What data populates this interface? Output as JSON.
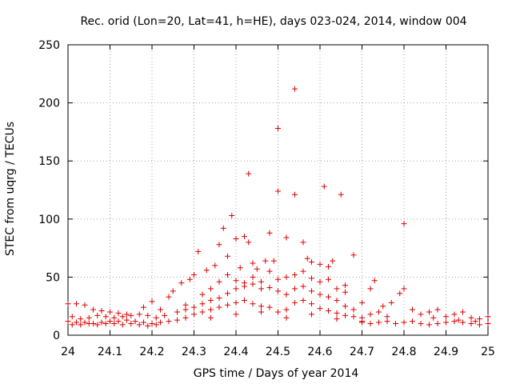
{
  "chart_data": {
    "type": "scatter",
    "title": "Rec. orid (Lon=20, Lat=41, h=HE), days 023-024, 2014, window 004",
    "xlabel": "GPS time / Days of year 2014",
    "ylabel": "STEC from uqrg / TECUs",
    "xlim": [
      24.0,
      25.0
    ],
    "ylim": [
      0,
      250
    ],
    "x_ticks": [
      "24",
      "24.1",
      "24.2",
      "24.3",
      "24.4",
      "24.5",
      "24.6",
      "24.7",
      "24.8",
      "24.9",
      "25"
    ],
    "y_ticks": [
      "0",
      "50",
      "100",
      "150",
      "200",
      "250"
    ],
    "grid": true,
    "marker": "+",
    "marker_color": "#dd0000",
    "points": [
      [
        24.0,
        27
      ],
      [
        24.02,
        27
      ],
      [
        24.04,
        26
      ],
      [
        24.06,
        22
      ],
      [
        24.08,
        21
      ],
      [
        24.1,
        20
      ],
      [
        24.12,
        19
      ],
      [
        24.14,
        18
      ],
      [
        24.01,
        16
      ],
      [
        24.03,
        14
      ],
      [
        24.05,
        15
      ],
      [
        24.07,
        17
      ],
      [
        24.09,
        16
      ],
      [
        24.11,
        15
      ],
      [
        24.13,
        16
      ],
      [
        24.15,
        17
      ],
      [
        24.17,
        18
      ],
      [
        24.19,
        17
      ],
      [
        24.21,
        15
      ],
      [
        24.23,
        17
      ],
      [
        24.0,
        12
      ],
      [
        24.02,
        11
      ],
      [
        24.04,
        11
      ],
      [
        24.06,
        10
      ],
      [
        24.08,
        11
      ],
      [
        24.1,
        12
      ],
      [
        24.12,
        12
      ],
      [
        24.14,
        13
      ],
      [
        24.16,
        12
      ],
      [
        24.18,
        11
      ],
      [
        24.2,
        10
      ],
      [
        24.22,
        11
      ],
      [
        24.24,
        12
      ],
      [
        24.26,
        13
      ],
      [
        24.28,
        15
      ],
      [
        24.01,
        9
      ],
      [
        24.03,
        9
      ],
      [
        24.05,
        10
      ],
      [
        24.07,
        9
      ],
      [
        24.09,
        10
      ],
      [
        24.11,
        10
      ],
      [
        24.13,
        9
      ],
      [
        24.15,
        10
      ],
      [
        24.17,
        9
      ],
      [
        24.19,
        8
      ],
      [
        24.21,
        9
      ],
      [
        24.18,
        24
      ],
      [
        24.2,
        29
      ],
      [
        24.22,
        22
      ],
      [
        24.24,
        33
      ],
      [
        24.25,
        38
      ],
      [
        24.27,
        45
      ],
      [
        24.29,
        48
      ],
      [
        24.3,
        52
      ],
      [
        24.31,
        72
      ],
      [
        24.33,
        56
      ],
      [
        24.35,
        60
      ],
      [
        24.36,
        78
      ],
      [
        24.37,
        92
      ],
      [
        24.38,
        68
      ],
      [
        24.39,
        103
      ],
      [
        24.4,
        83
      ],
      [
        24.41,
        58
      ],
      [
        24.42,
        85
      ],
      [
        24.43,
        80
      ],
      [
        24.44,
        62
      ],
      [
        24.45,
        57
      ],
      [
        24.43,
        139
      ],
      [
        24.47,
        64
      ],
      [
        24.48,
        88
      ],
      [
        24.49,
        64
      ],
      [
        24.5,
        124
      ],
      [
        24.5,
        178
      ],
      [
        24.52,
        84
      ],
      [
        24.54,
        121
      ],
      [
        24.54,
        212
      ],
      [
        24.56,
        80
      ],
      [
        24.57,
        66
      ],
      [
        24.58,
        63
      ],
      [
        24.6,
        61
      ],
      [
        24.61,
        128
      ],
      [
        24.62,
        59
      ],
      [
        24.63,
        64
      ],
      [
        24.65,
        121
      ],
      [
        24.66,
        43
      ],
      [
        24.68,
        69
      ],
      [
        24.7,
        28
      ],
      [
        24.72,
        40
      ],
      [
        24.73,
        47
      ],
      [
        24.75,
        25
      ],
      [
        24.77,
        28
      ],
      [
        24.79,
        36
      ],
      [
        24.8,
        40
      ],
      [
        24.8,
        96
      ],
      [
        24.82,
        22
      ],
      [
        24.28,
        26
      ],
      [
        24.3,
        24
      ],
      [
        24.32,
        27
      ],
      [
        24.34,
        30
      ],
      [
        24.36,
        32
      ],
      [
        24.38,
        36
      ],
      [
        24.4,
        40
      ],
      [
        24.42,
        42
      ],
      [
        24.44,
        44
      ],
      [
        24.46,
        40
      ],
      [
        24.48,
        41
      ],
      [
        24.5,
        38
      ],
      [
        24.52,
        35
      ],
      [
        24.54,
        40
      ],
      [
        24.56,
        42
      ],
      [
        24.58,
        38
      ],
      [
        24.6,
        35
      ],
      [
        24.62,
        33
      ],
      [
        24.64,
        30
      ],
      [
        24.66,
        25
      ],
      [
        24.68,
        22
      ],
      [
        24.32,
        35
      ],
      [
        24.34,
        40
      ],
      [
        24.36,
        46
      ],
      [
        24.38,
        52
      ],
      [
        24.4,
        47
      ],
      [
        24.42,
        45
      ],
      [
        24.44,
        50
      ],
      [
        24.46,
        46
      ],
      [
        24.48,
        55
      ],
      [
        24.5,
        48
      ],
      [
        24.52,
        50
      ],
      [
        24.54,
        52
      ],
      [
        24.56,
        55
      ],
      [
        24.58,
        49
      ],
      [
        24.6,
        46
      ],
      [
        24.62,
        48
      ],
      [
        24.64,
        40
      ],
      [
        24.66,
        37
      ],
      [
        24.3,
        18
      ],
      [
        24.32,
        20
      ],
      [
        24.34,
        22
      ],
      [
        24.36,
        24
      ],
      [
        24.38,
        26
      ],
      [
        24.4,
        28
      ],
      [
        24.42,
        30
      ],
      [
        24.44,
        27
      ],
      [
        24.46,
        25
      ],
      [
        24.48,
        24
      ],
      [
        24.5,
        20
      ],
      [
        24.52,
        22
      ],
      [
        24.54,
        28
      ],
      [
        24.56,
        30
      ],
      [
        24.58,
        27
      ],
      [
        24.6,
        23
      ],
      [
        24.62,
        21
      ],
      [
        24.64,
        19
      ],
      [
        24.66,
        17
      ],
      [
        24.68,
        16
      ],
      [
        24.7,
        15
      ],
      [
        24.26,
        20
      ],
      [
        24.28,
        22
      ],
      [
        24.34,
        15
      ],
      [
        24.4,
        18
      ],
      [
        24.46,
        20
      ],
      [
        24.52,
        15
      ],
      [
        24.58,
        18
      ],
      [
        24.64,
        14
      ],
      [
        24.7,
        12
      ],
      [
        24.72,
        18
      ],
      [
        24.74,
        20
      ],
      [
        24.76,
        16
      ],
      [
        24.7,
        11
      ],
      [
        24.72,
        10
      ],
      [
        24.74,
        11
      ],
      [
        24.76,
        12
      ],
      [
        24.78,
        10
      ],
      [
        24.8,
        11
      ],
      [
        24.82,
        12
      ],
      [
        24.84,
        10
      ],
      [
        24.86,
        9
      ],
      [
        24.88,
        10
      ],
      [
        24.9,
        11
      ],
      [
        24.92,
        12
      ],
      [
        24.94,
        11
      ],
      [
        24.96,
        10
      ],
      [
        24.98,
        9
      ],
      [
        25.0,
        10
      ],
      [
        24.84,
        18
      ],
      [
        24.86,
        20
      ],
      [
        24.88,
        22
      ],
      [
        24.9,
        16
      ],
      [
        24.92,
        18
      ],
      [
        24.94,
        20
      ],
      [
        24.96,
        15
      ],
      [
        24.98,
        14
      ],
      [
        25.0,
        16
      ],
      [
        24.87,
        15
      ],
      [
        24.93,
        13
      ],
      [
        24.97,
        12
      ]
    ]
  }
}
